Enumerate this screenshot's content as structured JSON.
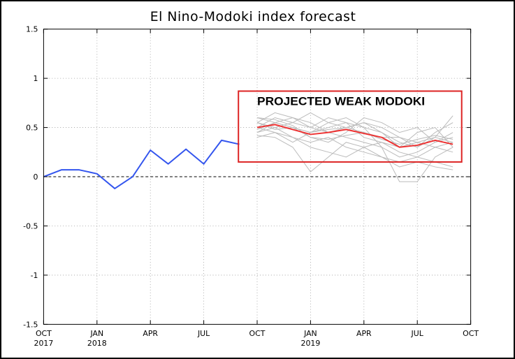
{
  "chart_data": {
    "type": "line",
    "title": "El Nino-Modoki index forecast",
    "xlabel": "",
    "ylabel": "",
    "x_range": [
      "2017-10",
      "2019-10"
    ],
    "ylim": [
      -1.5,
      1.5
    ],
    "yticks": [
      {
        "value": 1.5,
        "label": "1.5"
      },
      {
        "value": 1,
        "label": "1"
      },
      {
        "value": 0.5,
        "label": "0.5"
      },
      {
        "value": 0,
        "label": "0"
      },
      {
        "value": -0.5,
        "label": "-0.5"
      },
      {
        "value": -1,
        "label": "-1"
      },
      {
        "value": -1.5,
        "label": "-1.5"
      }
    ],
    "xticks": [
      {
        "date": "2017-10",
        "label": "OCT",
        "year": "2017"
      },
      {
        "date": "2018-01",
        "label": "JAN",
        "year": "2018"
      },
      {
        "date": "2018-04",
        "label": "APR",
        "year": ""
      },
      {
        "date": "2018-07",
        "label": "JUL",
        "year": ""
      },
      {
        "date": "2018-10",
        "label": "OCT",
        "year": ""
      },
      {
        "date": "2019-01",
        "label": "JAN",
        "year": "2019"
      },
      {
        "date": "2019-04",
        "label": "APR",
        "year": ""
      },
      {
        "date": "2019-07",
        "label": "JUL",
        "year": ""
      },
      {
        "date": "2019-10",
        "label": "OCT",
        "year": ""
      }
    ],
    "grid": true,
    "zero_line": "dashed",
    "series": [
      {
        "role": "observed",
        "color": "#3355ee",
        "points": [
          {
            "x": "2017-10",
            "y": 0.0
          },
          {
            "x": "2017-11",
            "y": 0.07
          },
          {
            "x": "2017-12",
            "y": 0.07
          },
          {
            "x": "2018-01",
            "y": 0.03
          },
          {
            "x": "2018-02",
            "y": -0.12
          },
          {
            "x": "2018-03",
            "y": 0.0
          },
          {
            "x": "2018-04",
            "y": 0.27
          },
          {
            "x": "2018-05",
            "y": 0.13
          },
          {
            "x": "2018-06",
            "y": 0.28
          },
          {
            "x": "2018-07",
            "y": 0.13
          },
          {
            "x": "2018-08",
            "y": 0.37
          },
          {
            "x": "2018-09",
            "y": 0.33
          }
        ]
      },
      {
        "role": "ensemble_mean",
        "color": "#ee3333",
        "points": [
          {
            "x": "2018-10",
            "y": 0.5
          },
          {
            "x": "2018-11",
            "y": 0.53
          },
          {
            "x": "2018-12",
            "y": 0.48
          },
          {
            "x": "2019-01",
            "y": 0.43
          },
          {
            "x": "2019-02",
            "y": 0.45
          },
          {
            "x": "2019-03",
            "y": 0.48
          },
          {
            "x": "2019-04",
            "y": 0.44
          },
          {
            "x": "2019-05",
            "y": 0.4
          },
          {
            "x": "2019-06",
            "y": 0.3
          },
          {
            "x": "2019-07",
            "y": 0.32
          },
          {
            "x": "2019-08",
            "y": 0.37
          },
          {
            "x": "2019-09",
            "y": 0.33
          }
        ]
      }
    ],
    "ensemble": {
      "color": "#bbbbbb",
      "months": [
        "2018-10",
        "2018-11",
        "2018-12",
        "2019-01",
        "2019-02",
        "2019-03",
        "2019-04",
        "2019-05",
        "2019-06",
        "2019-07",
        "2019-08",
        "2019-09"
      ],
      "members": [
        [
          0.45,
          0.55,
          0.6,
          0.55,
          0.45,
          0.5,
          0.55,
          0.45,
          0.35,
          0.3,
          0.45,
          0.55
        ],
        [
          0.5,
          0.6,
          0.55,
          0.65,
          0.55,
          0.5,
          0.45,
          0.4,
          0.4,
          0.3,
          0.4,
          0.62
        ],
        [
          0.55,
          0.48,
          0.5,
          0.4,
          0.35,
          0.45,
          0.6,
          0.55,
          0.45,
          0.5,
          0.35,
          0.4
        ],
        [
          0.4,
          0.45,
          0.4,
          0.3,
          0.25,
          0.2,
          0.3,
          0.35,
          0.25,
          0.2,
          0.3,
          0.25
        ],
        [
          0.6,
          0.55,
          0.5,
          0.45,
          0.55,
          0.6,
          0.5,
          0.3,
          0.2,
          0.25,
          0.35,
          0.45
        ],
        [
          0.45,
          0.5,
          0.4,
          0.35,
          0.4,
          0.3,
          0.25,
          0.2,
          0.15,
          0.2,
          0.15,
          0.1
        ],
        [
          0.55,
          0.65,
          0.6,
          0.5,
          0.6,
          0.55,
          0.5,
          0.45,
          0.3,
          0.35,
          0.4,
          0.35
        ],
        [
          0.5,
          0.45,
          0.35,
          0.45,
          0.5,
          0.55,
          0.4,
          0.35,
          0.3,
          0.45,
          0.5,
          0.3
        ],
        [
          0.42,
          0.4,
          0.3,
          0.05,
          0.2,
          0.35,
          0.3,
          0.2,
          0.1,
          0.15,
          0.1,
          0.07
        ],
        [
          0.55,
          0.5,
          0.55,
          0.5,
          0.45,
          0.4,
          0.35,
          0.3,
          -0.05,
          -0.05,
          0.2,
          0.3
        ],
        [
          0.48,
          0.55,
          0.5,
          0.45,
          0.48,
          0.5,
          0.55,
          0.5,
          0.4,
          0.35,
          0.3,
          0.35
        ],
        [
          0.6,
          0.58,
          0.52,
          0.4,
          0.38,
          0.42,
          0.45,
          0.38,
          0.33,
          0.38,
          0.42,
          0.38
        ]
      ]
    },
    "annotation": {
      "text": "PROJECTED WEAK MODOKI",
      "box_color": "#dd2222",
      "x_range": [
        "2018-09",
        "2019-10"
      ],
      "y_range": [
        0.15,
        0.87
      ]
    }
  }
}
